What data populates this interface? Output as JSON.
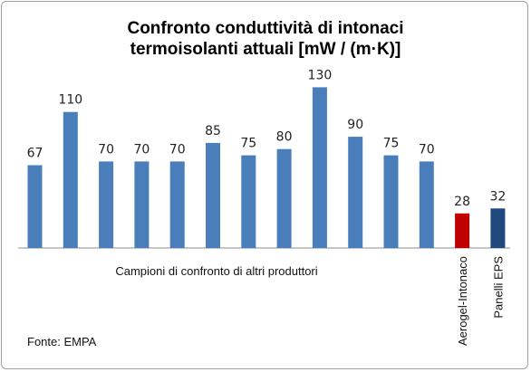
{
  "chart_data": {
    "type": "bar",
    "title": "Confronto conduttività di intonaci termoisolanti attuali [mW / (m·K)]",
    "title_lines": [
      "Confronto conduttività di intonaci",
      "termoisolanti attuali [mW / (m·K)]"
    ],
    "categories": [
      "",
      "",
      "",
      "",
      "",
      "",
      "",
      "",
      "",
      "",
      "",
      "",
      "Aerogel-Intonaco",
      "Panelli EPS"
    ],
    "values": [
      67,
      110,
      70,
      70,
      70,
      85,
      75,
      80,
      130,
      90,
      75,
      70,
      28,
      32
    ],
    "colors": [
      "#4a7ebb",
      "#4a7ebb",
      "#4a7ebb",
      "#4a7ebb",
      "#4a7ebb",
      "#4a7ebb",
      "#4a7ebb",
      "#4a7ebb",
      "#4a7ebb",
      "#4a7ebb",
      "#4a7ebb",
      "#4a7ebb",
      "#c00000",
      "#1f497d"
    ],
    "group_label": "Campioni di confronto di altri produttori",
    "source": "Fonte: EMPA",
    "ylim": [
      0,
      150
    ],
    "grid": false,
    "legend": "none"
  }
}
